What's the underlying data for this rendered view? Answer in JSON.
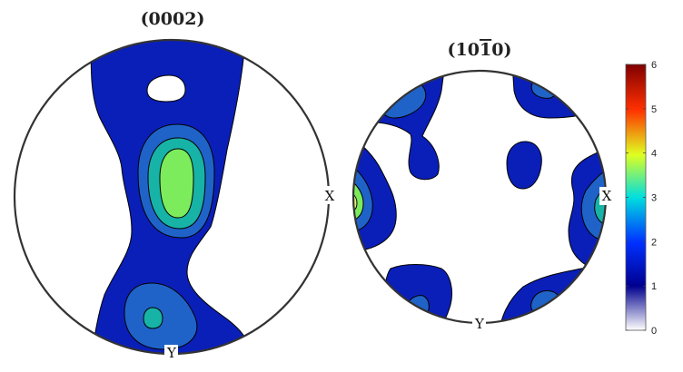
{
  "pole_figures": [
    {
      "title_main": "(000",
      "title_tail": "2)",
      "overline_digit": "",
      "labels": {
        "x": "X",
        "y": "Y"
      }
    },
    {
      "title_main": "(10",
      "overline_digit": "1",
      "title_tail": "0)",
      "labels": {
        "x": "X",
        "y": "Y"
      }
    }
  ],
  "colorbar": {
    "ticks": [
      "6",
      "5",
      "4",
      "3",
      "2",
      "1",
      "0"
    ],
    "min": 0,
    "max": 6,
    "colormap": "jet",
    "stops": [
      "#ffffff",
      "#00008f",
      "#0000ff",
      "#00ffff",
      "#ffff00",
      "#ff0000",
      "#800000"
    ]
  },
  "contour_colors": {
    "level_1": "#0a1fb8",
    "level_2": "#1f63c8",
    "level_3": "#17b3a6",
    "level_4": "#7cec5c",
    "level_5": "#dcf57a"
  }
}
